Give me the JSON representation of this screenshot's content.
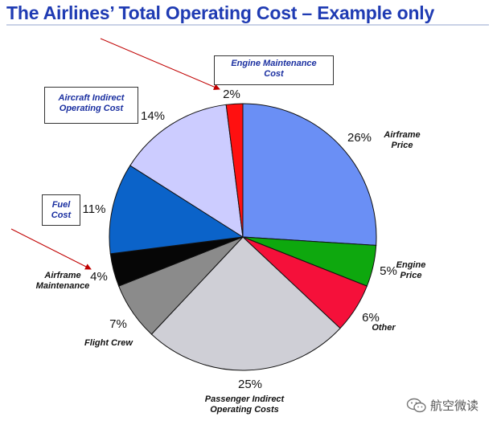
{
  "title": "The Airlines’ Total Operating Cost – Example only",
  "callouts": {
    "engine_maintenance": [
      "Engine Maintenance",
      "Cost"
    ],
    "aircraft_indirect": [
      "Aircraft Indirect",
      "Operating Cost"
    ],
    "fuel": [
      "Fuel",
      "Cost"
    ]
  },
  "watermark": {
    "text": "航空微读",
    "icon": "wechat-icon"
  },
  "chart_data": {
    "type": "pie",
    "title": "The Airlines’ Total Operating Cost – Example only",
    "legend": "none",
    "start": "12 o'clock",
    "direction": "clockwise",
    "slices": [
      {
        "label": "Airframe Price",
        "label_lines": [
          "Airframe",
          "Price"
        ],
        "value": 26,
        "pct_label": "26%",
        "color": "#6a8ff5"
      },
      {
        "label": "Engine Price",
        "label_lines": [
          "Engine",
          "Price"
        ],
        "value": 5,
        "pct_label": "5%",
        "color": "#0ea80e"
      },
      {
        "label": "Other",
        "label_lines": [
          "Other"
        ],
        "value": 6,
        "pct_label": "6%",
        "color": "#f5103a"
      },
      {
        "label": "Passenger Indirect Operating Costs",
        "label_lines": [
          "Passenger Indirect",
          "Operating Costs"
        ],
        "value": 25,
        "pct_label": "25%",
        "color": "#cfcfd6"
      },
      {
        "label": "Flight Crew",
        "label_lines": [
          "Flight Crew"
        ],
        "value": 7,
        "pct_label": "7%",
        "color": "#8b8b8b"
      },
      {
        "label": "Airframe Maintenance",
        "label_lines": [
          "Airframe",
          "Maintenance"
        ],
        "value": 4,
        "pct_label": "4%",
        "color": "#060606"
      },
      {
        "label": "Fuel Cost",
        "label_lines": [],
        "value": 11,
        "pct_label": "11%",
        "color": "#0b63c9"
      },
      {
        "label": "Aircraft Indirect Operating Cost",
        "label_lines": [],
        "value": 14,
        "pct_label": "14%",
        "color": "#ccccff"
      },
      {
        "label": "Engine Maintenance Cost",
        "label_lines": [],
        "value": 2,
        "pct_label": "2%",
        "color": "#ff1010"
      }
    ]
  }
}
